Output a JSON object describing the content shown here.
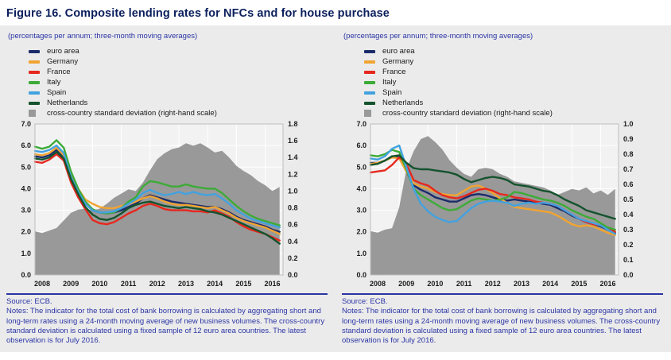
{
  "title": "Figure 16. Composite lending rates for NFCs and for house purchase",
  "colors": {
    "title_text": "#0a1f5c",
    "blue_text": "#2b35a5",
    "panel_background": "#ebebeb",
    "plot_background": "#f2f2f2",
    "gridline": "#ffffff",
    "std_dev_area": "#999999"
  },
  "panels": [
    {
      "id": "nfc",
      "subtitle": "(percentages per annum; three-month moving averages)",
      "legend": [
        {
          "label": "euro area",
          "color": "#1b2c6b",
          "shape": "line"
        },
        {
          "label": "Germany",
          "color": "#f0a432",
          "shape": "line"
        },
        {
          "label": "France",
          "color": "#e6281e",
          "shape": "line"
        },
        {
          "label": "Italy",
          "color": "#3dab37",
          "shape": "line"
        },
        {
          "label": "Spain",
          "color": "#42a2e0",
          "shape": "line"
        },
        {
          "label": "Netherlands",
          "color": "#14532d",
          "shape": "line"
        },
        {
          "label": "cross-country standard deviation (right-hand scale)",
          "color": "#999999",
          "shape": "square"
        }
      ],
      "source": "Source: ECB.",
      "notes": "Notes: The indicator for the total cost of bank borrowing is calculated by aggregating short and long-term rates using a 24-month moving average of new business volumes. The cross-country standard deviation is calculated using a fixed sample of 12 euro area countries. The latest observation is for July 2016.",
      "chart_data": {
        "type": "line",
        "x": [
          2008,
          2008.25,
          2008.5,
          2008.75,
          2009,
          2009.25,
          2009.5,
          2009.75,
          2010,
          2010.25,
          2010.5,
          2010.75,
          2011,
          2011.25,
          2011.5,
          2011.75,
          2012,
          2012.25,
          2012.5,
          2012.75,
          2013,
          2013.25,
          2013.5,
          2013.75,
          2014,
          2014.25,
          2014.5,
          2014.75,
          2015,
          2015.25,
          2015.5,
          2015.75,
          2016,
          2016.25,
          2016.5
        ],
        "x_ticks": [
          2008,
          2009,
          2010,
          2011,
          2012,
          2013,
          2014,
          2015,
          2016
        ],
        "left_axis": {
          "min": 0.0,
          "max": 7.0,
          "step": 1.0
        },
        "right_axis": {
          "min": 0.0,
          "max": 1.8,
          "step": 0.2
        },
        "series": [
          {
            "name": "euro area",
            "color": "#1b2c6b",
            "axis": "left",
            "values": [
              5.5,
              5.45,
              5.55,
              5.8,
              5.45,
              4.4,
              3.8,
              3.3,
              3.0,
              2.9,
              2.85,
              2.9,
              3.0,
              3.15,
              3.3,
              3.55,
              3.7,
              3.6,
              3.5,
              3.4,
              3.35,
              3.3,
              3.25,
              3.2,
              3.15,
              3.15,
              3.05,
              2.9,
              2.7,
              2.55,
              2.45,
              2.35,
              2.25,
              2.1,
              2.0
            ]
          },
          {
            "name": "Germany",
            "color": "#f0a432",
            "axis": "left",
            "values": [
              5.6,
              5.55,
              5.65,
              5.9,
              5.55,
              4.6,
              4.0,
              3.5,
              3.3,
              3.15,
              3.1,
              3.1,
              3.2,
              3.3,
              3.4,
              3.55,
              3.65,
              3.55,
              3.4,
              3.3,
              3.25,
              3.25,
              3.2,
              3.15,
              3.1,
              3.15,
              3.0,
              2.85,
              2.65,
              2.5,
              2.4,
              2.3,
              2.2,
              2.05,
              1.9
            ]
          },
          {
            "name": "France",
            "color": "#e6281e",
            "axis": "left",
            "values": [
              5.25,
              5.2,
              5.35,
              5.6,
              5.3,
              4.3,
              3.6,
              3.05,
              2.55,
              2.4,
              2.35,
              2.45,
              2.65,
              2.85,
              3.0,
              3.2,
              3.3,
              3.2,
              3.05,
              3.0,
              3.0,
              3.0,
              2.95,
              2.95,
              2.9,
              3.0,
              2.85,
              2.7,
              2.45,
              2.25,
              2.1,
              2.0,
              1.9,
              1.75,
              1.6
            ]
          },
          {
            "name": "Italy",
            "color": "#3dab37",
            "axis": "left",
            "values": [
              5.95,
              5.85,
              5.95,
              6.25,
              5.9,
              4.8,
              4.0,
              3.4,
              3.05,
              2.9,
              2.85,
              2.9,
              3.1,
              3.4,
              3.6,
              4.1,
              4.35,
              4.3,
              4.2,
              4.1,
              4.1,
              4.2,
              4.1,
              4.05,
              4.0,
              4.0,
              3.8,
              3.5,
              3.2,
              2.95,
              2.75,
              2.6,
              2.5,
              2.4,
              2.3
            ]
          },
          {
            "name": "Spain",
            "color": "#42a2e0",
            "axis": "left",
            "values": [
              5.75,
              5.7,
              5.8,
              6.0,
              5.65,
              4.55,
              3.85,
              3.3,
              3.0,
              2.9,
              2.9,
              2.95,
              3.1,
              3.3,
              3.5,
              3.8,
              3.95,
              3.8,
              3.7,
              3.75,
              3.85,
              3.75,
              3.85,
              3.75,
              3.7,
              3.75,
              3.55,
              3.3,
              3.0,
              2.8,
              2.6,
              2.5,
              2.4,
              2.3,
              2.2
            ]
          },
          {
            "name": "Netherlands",
            "color": "#14532d",
            "axis": "left",
            "values": [
              5.4,
              5.35,
              5.45,
              5.7,
              5.4,
              4.45,
              3.75,
              3.15,
              2.8,
              2.6,
              2.55,
              2.65,
              2.85,
              3.1,
              3.25,
              3.35,
              3.4,
              3.3,
              3.2,
              3.15,
              3.1,
              3.15,
              3.1,
              3.05,
              2.95,
              2.9,
              2.8,
              2.65,
              2.5,
              2.35,
              2.2,
              2.05,
              1.9,
              1.7,
              1.45
            ]
          }
        ],
        "area": {
          "name": "cross-country standard deviation",
          "color": "#999999",
          "axis": "right",
          "values": [
            0.52,
            0.5,
            0.53,
            0.56,
            0.65,
            0.74,
            0.78,
            0.79,
            0.77,
            0.79,
            0.85,
            0.92,
            0.97,
            1.02,
            1.0,
            1.1,
            1.25,
            1.38,
            1.45,
            1.5,
            1.52,
            1.57,
            1.54,
            1.57,
            1.52,
            1.46,
            1.48,
            1.4,
            1.3,
            1.24,
            1.19,
            1.12,
            1.07,
            1.0,
            1.05
          ]
        }
      }
    },
    {
      "id": "house-purchase",
      "subtitle": "(percentages per annum; three-month moving averages)",
      "legend": [
        {
          "label": "euro area",
          "color": "#1b2c6b",
          "shape": "line"
        },
        {
          "label": "Germany",
          "color": "#f0a432",
          "shape": "line"
        },
        {
          "label": "France",
          "color": "#e6281e",
          "shape": "line"
        },
        {
          "label": "Italy",
          "color": "#3dab37",
          "shape": "line"
        },
        {
          "label": "Spain",
          "color": "#42a2e0",
          "shape": "line"
        },
        {
          "label": "Netherlands",
          "color": "#14532d",
          "shape": "line"
        },
        {
          "label": "cross-country standard deviation (right-hand scale)",
          "color": "#999999",
          "shape": "square"
        }
      ],
      "source": "Source: ECB.",
      "notes": "Notes: The indicator for the total cost of bank borrowing is calculated by aggregating short and long-term rates using a 24-month moving average of new business volumes. The cross-country standard deviation is calculated using a fixed sample of 12 euro area countries. The latest observation is for July 2016.",
      "chart_data": {
        "type": "line",
        "x": [
          2008,
          2008.25,
          2008.5,
          2008.75,
          2009,
          2009.25,
          2009.5,
          2009.75,
          2010,
          2010.25,
          2010.5,
          2010.75,
          2011,
          2011.25,
          2011.5,
          2011.75,
          2012,
          2012.25,
          2012.5,
          2012.75,
          2013,
          2013.25,
          2013.5,
          2013.75,
          2014,
          2014.25,
          2014.5,
          2014.75,
          2015,
          2015.25,
          2015.5,
          2015.75,
          2016,
          2016.25,
          2016.5
        ],
        "x_ticks": [
          2008,
          2009,
          2010,
          2011,
          2012,
          2013,
          2014,
          2015,
          2016
        ],
        "left_axis": {
          "min": 0.0,
          "max": 7.0,
          "step": 1.0
        },
        "right_axis": {
          "min": 0.0,
          "max": 1.0,
          "step": 0.1
        },
        "series": [
          {
            "name": "euro area",
            "color": "#1b2c6b",
            "axis": "left",
            "values": [
              5.2,
              5.2,
              5.3,
              5.5,
              5.45,
              4.8,
              4.15,
              3.95,
              3.8,
              3.6,
              3.5,
              3.4,
              3.4,
              3.55,
              3.7,
              3.75,
              3.7,
              3.6,
              3.5,
              3.45,
              3.5,
              3.45,
              3.4,
              3.35,
              3.3,
              3.25,
              3.1,
              2.95,
              2.75,
              2.6,
              2.45,
              2.35,
              2.25,
              2.1,
              1.95
            ]
          },
          {
            "name": "Germany",
            "color": "#f0a432",
            "axis": "left",
            "values": [
              5.15,
              5.2,
              5.3,
              5.45,
              5.4,
              4.8,
              4.25,
              4.1,
              4.0,
              3.85,
              3.75,
              3.7,
              3.7,
              3.9,
              4.1,
              4.15,
              4.0,
              3.8,
              3.55,
              3.35,
              3.15,
              3.1,
              3.05,
              3.0,
              2.95,
              2.9,
              2.75,
              2.55,
              2.35,
              2.25,
              2.3,
              2.25,
              2.1,
              1.95,
              1.85
            ]
          },
          {
            "name": "France",
            "color": "#e6281e",
            "axis": "left",
            "values": [
              4.75,
              4.8,
              4.85,
              5.1,
              5.45,
              5.15,
              4.4,
              4.25,
              4.15,
              3.9,
              3.7,
              3.6,
              3.55,
              3.65,
              3.8,
              3.95,
              4.0,
              3.9,
              3.75,
              3.7,
              3.6,
              3.55,
              3.5,
              3.4,
              3.35,
              3.3,
              3.2,
              3.0,
              2.8,
              2.6,
              2.45,
              2.35,
              2.3,
              2.2,
              2.0
            ]
          },
          {
            "name": "Italy",
            "color": "#3dab37",
            "axis": "left",
            "values": [
              5.55,
              5.5,
              5.6,
              5.8,
              5.7,
              4.9,
              4.0,
              3.7,
              3.5,
              3.3,
              3.1,
              3.0,
              3.05,
              3.25,
              3.45,
              3.55,
              3.5,
              3.45,
              3.5,
              3.6,
              3.85,
              3.8,
              3.7,
              3.6,
              3.5,
              3.45,
              3.35,
              3.2,
              3.0,
              2.85,
              2.7,
              2.6,
              2.4,
              2.2,
              2.1
            ]
          },
          {
            "name": "Spain",
            "color": "#42a2e0",
            "axis": "left",
            "values": [
              5.4,
              5.35,
              5.5,
              5.85,
              6.0,
              5.0,
              4.0,
              3.3,
              2.95,
              2.7,
              2.55,
              2.45,
              2.5,
              2.8,
              3.1,
              3.3,
              3.4,
              3.45,
              3.4,
              3.35,
              3.2,
              3.3,
              3.35,
              3.3,
              3.35,
              3.3,
              3.2,
              3.0,
              2.8,
              2.6,
              2.5,
              2.4,
              2.3,
              2.1,
              1.9
            ]
          },
          {
            "name": "Netherlands",
            "color": "#14532d",
            "axis": "left",
            "values": [
              5.1,
              5.15,
              5.3,
              5.5,
              5.55,
              5.2,
              4.95,
              4.9,
              4.9,
              4.85,
              4.8,
              4.75,
              4.65,
              4.45,
              4.3,
              4.4,
              4.5,
              4.55,
              4.5,
              4.4,
              4.2,
              4.15,
              4.1,
              4.0,
              3.9,
              3.85,
              3.7,
              3.5,
              3.35,
              3.2,
              3.0,
              2.9,
              2.8,
              2.7,
              2.6
            ]
          }
        ],
        "area": {
          "name": "cross-country standard deviation",
          "color": "#999999",
          "axis": "right",
          "values": [
            0.29,
            0.28,
            0.3,
            0.31,
            0.45,
            0.7,
            0.82,
            0.9,
            0.92,
            0.88,
            0.83,
            0.76,
            0.71,
            0.67,
            0.65,
            0.7,
            0.71,
            0.7,
            0.67,
            0.65,
            0.62,
            0.61,
            0.6,
            0.59,
            0.58,
            0.56,
            0.53,
            0.55,
            0.57,
            0.56,
            0.58,
            0.54,
            0.56,
            0.53,
            0.57
          ]
        }
      }
    }
  ]
}
